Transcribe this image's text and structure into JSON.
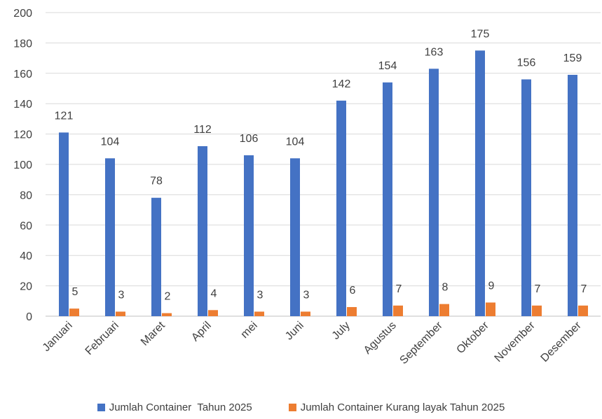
{
  "chart_data": {
    "type": "bar",
    "categories": [
      "Januari",
      "Februari",
      "Maret",
      "April",
      "mei",
      "Juni",
      "July",
      "Agustus",
      "September",
      "Oktober",
      "November",
      "Desember"
    ],
    "series": [
      {
        "name": "Jumlah Container  Tahun 2025",
        "color": "#4472C4",
        "values": [
          121,
          104,
          78,
          112,
          106,
          104,
          142,
          154,
          163,
          175,
          156,
          159
        ]
      },
      {
        "name": "Jumlah Container Kurang layak Tahun 2025",
        "color": "#ED7D31",
        "values": [
          5,
          3,
          2,
          4,
          3,
          3,
          6,
          7,
          8,
          9,
          7,
          7
        ]
      }
    ],
    "ylim": [
      0,
      200
    ],
    "yticks": [
      0,
      20,
      40,
      60,
      80,
      100,
      120,
      140,
      160,
      180,
      200
    ],
    "grid": true,
    "legend_position": "bottom"
  }
}
